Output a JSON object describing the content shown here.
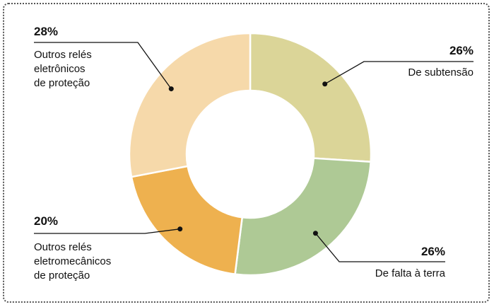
{
  "chart_data": {
    "type": "donut",
    "categories": [
      "De subtensão",
      "De falta à terra",
      "Outros relés\neletromecânicos\nde proteção",
      "Outros relés\neletrônicos\nde proteção"
    ],
    "values": [
      26,
      26,
      20,
      28
    ],
    "value_labels": [
      "26%",
      "26%",
      "20%",
      "28%"
    ],
    "colors": [
      "#dbd598",
      "#aec995",
      "#eeb14f",
      "#f6d9aa"
    ]
  }
}
